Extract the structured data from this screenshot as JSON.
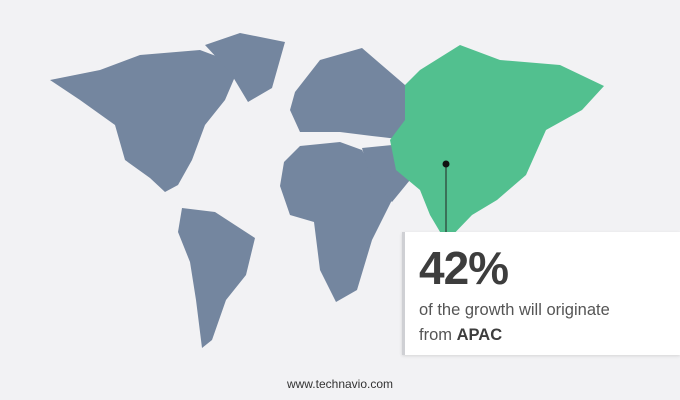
{
  "colors": {
    "land": "#74869f",
    "highlight": "#52c08f",
    "background": "#f2f2f4"
  },
  "highlighted_region": "APAC",
  "callout": {
    "value": "42%",
    "text": "of the growth will originate",
    "prefix": "from",
    "region": "APAC"
  },
  "footer": {
    "url": "www.technavio.com"
  }
}
